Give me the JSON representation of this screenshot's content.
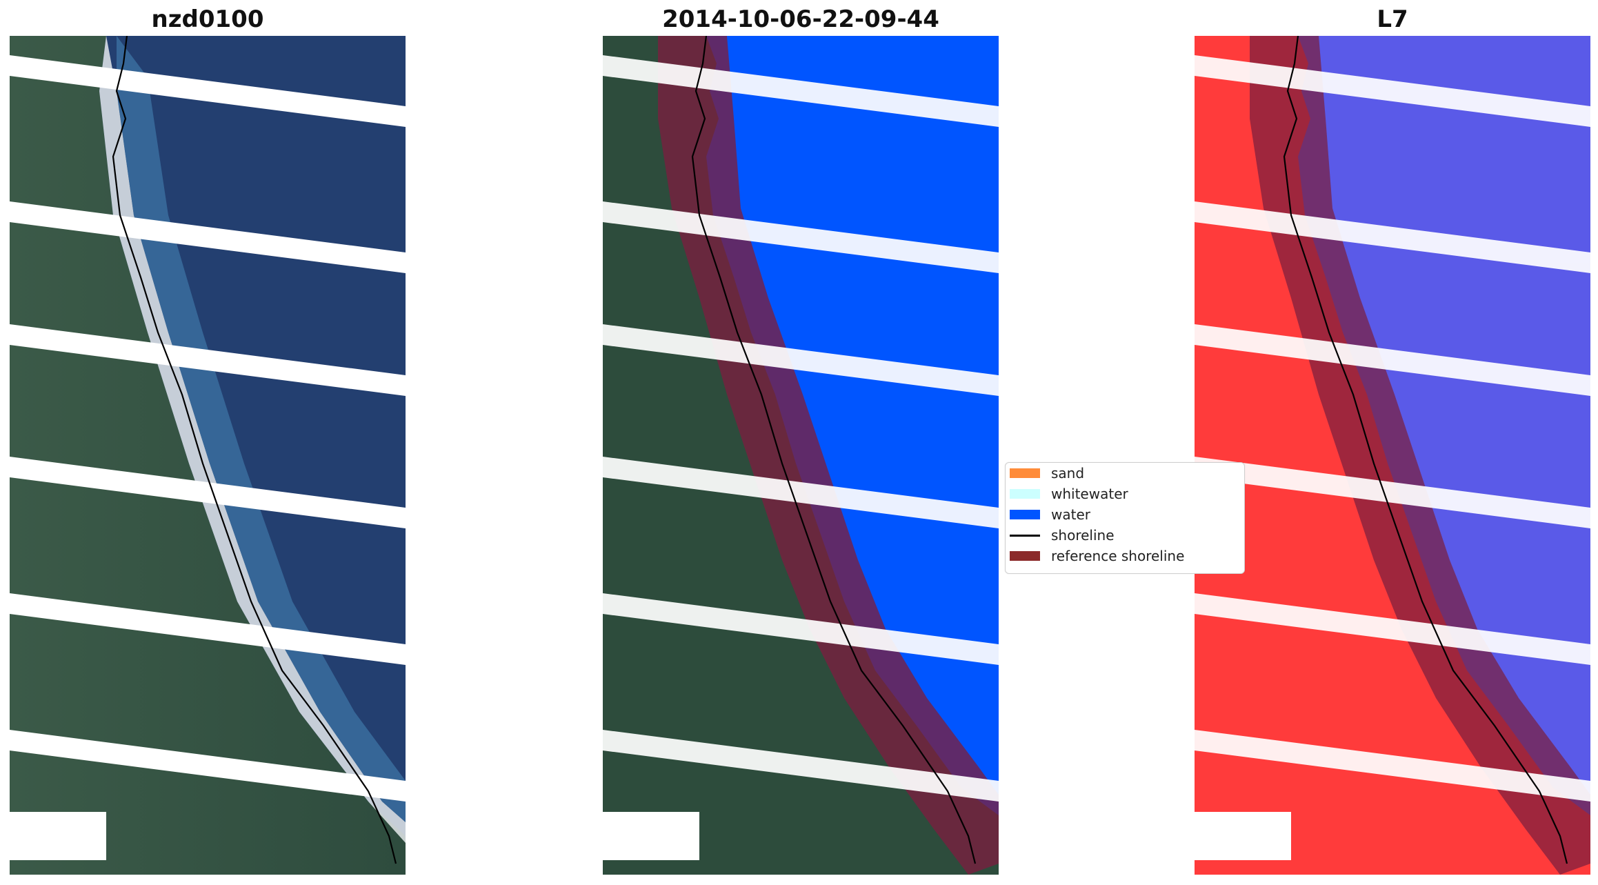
{
  "titles": {
    "left": "nzd0100",
    "middle": "2014-10-06-22-09-44",
    "right": "L7"
  },
  "legend": {
    "items": [
      {
        "label": "sand",
        "color": "#ff8c3a",
        "icon": "patch"
      },
      {
        "label": "whitewater",
        "color": "#ccffff",
        "icon": "patch"
      },
      {
        "label": "water",
        "color": "#0055ff",
        "icon": "patch"
      },
      {
        "label": "shoreline",
        "color": "#000000",
        "icon": "line"
      },
      {
        "label": "reference shoreline",
        "color": "#8b2a2a",
        "icon": "patch"
      }
    ]
  },
  "colors": {
    "ocean_rgb": "#2a4a7c",
    "land_rgb": "#3f5a4a",
    "water_class": "#0055ff",
    "land_index": "#ff3b3b",
    "water_index": "#4b4bd6",
    "buffer": "#7a1f3f"
  }
}
